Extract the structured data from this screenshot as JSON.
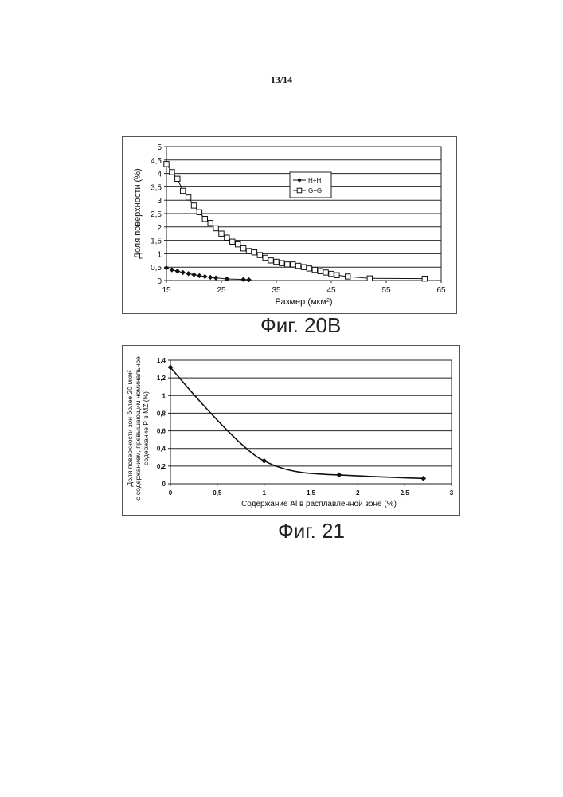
{
  "page": {
    "number": "13/14"
  },
  "captions": {
    "fig1": "Фиг. 20В",
    "fig2": "Фиг. 21"
  },
  "chart_data": [
    {
      "type": "scatter",
      "xlabel": "Размер (мкм",
      "xlabel_sup": "2",
      "xlabel_suffix": ")",
      "ylabel": "Доля поверхности (%)",
      "xlim": [
        15,
        65
      ],
      "ylim": [
        0,
        5
      ],
      "x_ticks": [
        "15",
        "25",
        "35",
        "45",
        "55",
        "65"
      ],
      "y_ticks": [
        "0",
        "0,5",
        "1",
        "1,5",
        "2",
        "2,5",
        "3",
        "3,5",
        "4",
        "4,5",
        "5"
      ],
      "grid": true,
      "legend_position": "top-right",
      "series": [
        {
          "name": "H+H",
          "marker": "diamond-filled",
          "x": [
            15,
            16,
            17,
            18,
            19,
            20,
            21,
            22,
            23,
            24,
            26,
            29,
            30
          ],
          "y": [
            0.47,
            0.4,
            0.35,
            0.3,
            0.26,
            0.22,
            0.18,
            0.15,
            0.12,
            0.1,
            0.06,
            0.04,
            0.03
          ]
        },
        {
          "name": "G+G",
          "marker": "square-open",
          "x": [
            15,
            16,
            17,
            18,
            19,
            20,
            21,
            22,
            23,
            24,
            25,
            26,
            27,
            28,
            29,
            30,
            31,
            32,
            33,
            34,
            35,
            36,
            37,
            38,
            39,
            40,
            41,
            42,
            43,
            44,
            45,
            46,
            48,
            52,
            62
          ],
          "y": [
            4.35,
            4.05,
            3.8,
            3.35,
            3.1,
            2.8,
            2.55,
            2.3,
            2.15,
            1.95,
            1.75,
            1.6,
            1.45,
            1.35,
            1.2,
            1.1,
            1.05,
            0.95,
            0.85,
            0.75,
            0.7,
            0.65,
            0.6,
            0.6,
            0.55,
            0.5,
            0.45,
            0.4,
            0.35,
            0.3,
            0.25,
            0.2,
            0.15,
            0.08,
            0.07
          ]
        }
      ]
    },
    {
      "type": "line",
      "xlabel": "Содержание Al в расплавленной зоне (%)",
      "ylabel_lines": [
        "Доля поверхности зон более 20 мкм² ",
        "с содержанием, превышающим номинальное",
        "содержание Р в MZ (%)"
      ],
      "xlim": [
        0,
        3
      ],
      "ylim": [
        0,
        1.4
      ],
      "x_ticks": [
        "0",
        "0,5",
        "1",
        "1,5",
        "2",
        "2,5",
        "3"
      ],
      "y_ticks": [
        "0",
        "0,2",
        "0,4",
        "0,6",
        "0,8",
        "1",
        "1,2",
        "1,4"
      ],
      "grid": true,
      "series": [
        {
          "marker": "diamond-filled",
          "x": [
            0,
            1,
            1.8,
            2.7
          ],
          "y": [
            1.32,
            0.26,
            0.1,
            0.06
          ]
        }
      ]
    }
  ]
}
